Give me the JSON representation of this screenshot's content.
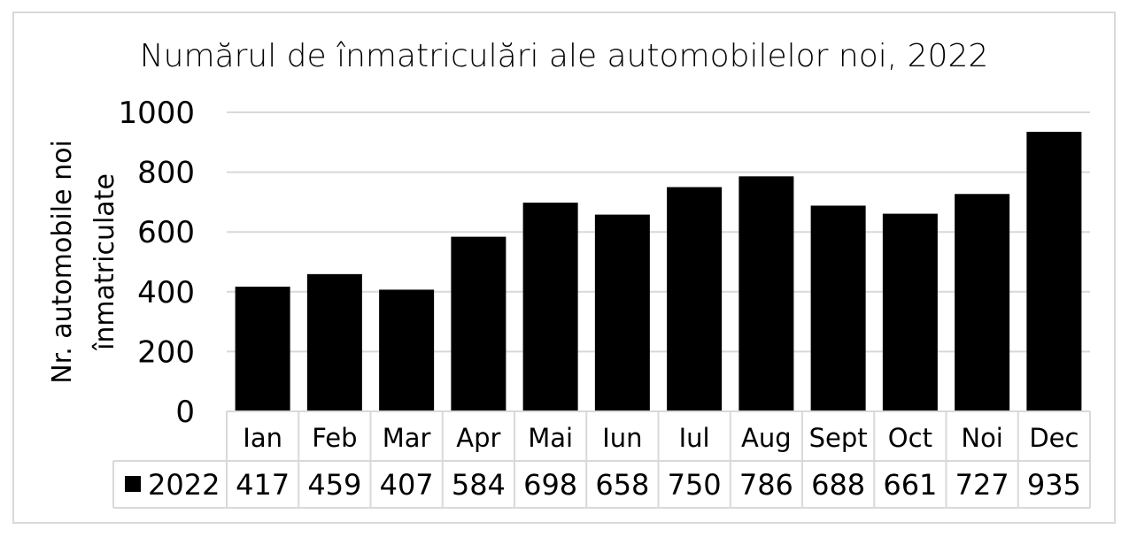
{
  "chart_data": {
    "type": "bar",
    "title": "Numărul de înmatriculări ale automobilelor noi, 2022",
    "ylabel_lines": [
      "Nr. automobile noi",
      "înmatriculate"
    ],
    "xlabel": "",
    "ylim": [
      0,
      1000
    ],
    "yticks": [
      "0",
      "200",
      "400",
      "600",
      "800",
      "1000"
    ],
    "ytick_values": [
      0,
      200,
      400,
      600,
      800,
      1000
    ],
    "grid": true,
    "legend_position": "data-table",
    "categories": [
      "Ian",
      "Feb",
      "Mar",
      "Apr",
      "Mai",
      "Iun",
      "Iul",
      "Aug",
      "Sept",
      "Oct",
      "Noi",
      "Dec"
    ],
    "series": [
      {
        "name": "2022",
        "color": "#000000",
        "values": [
          417,
          459,
          407,
          584,
          698,
          658,
          750,
          786,
          688,
          661,
          727,
          935
        ],
        "value_labels": [
          "417",
          "459",
          "407",
          "584",
          "698",
          "658",
          "750",
          "786",
          "688",
          "661",
          "727",
          "935"
        ]
      }
    ]
  },
  "colors": {
    "bar": "#000000",
    "grid": "#d9d9d9",
    "frame": "#d9d9d9",
    "text": "#000000"
  }
}
